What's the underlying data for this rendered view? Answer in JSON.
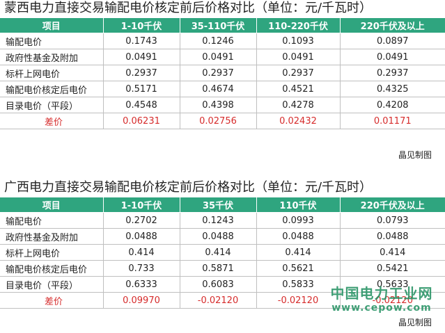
{
  "tables": [
    {
      "title": "蒙西电力直接交易输配电价核定前后价格对比（单位：元/千瓦时）",
      "headers": [
        "项目",
        "1-10千伏",
        "35-110千伏",
        "110-220千伏",
        "220千伏及以上"
      ],
      "rows": [
        [
          "输配电价",
          "0.1743",
          "0.1246",
          "0.1093",
          "0.0897"
        ],
        [
          "政府性基金及附加",
          "0.0491",
          "0.0491",
          "0.0491",
          "0.0491"
        ],
        [
          "标杆上网电价",
          "0.2937",
          "0.2937",
          "0.2937",
          "0.2937"
        ],
        [
          "输配电价核定后电价",
          "0.5171",
          "0.4674",
          "0.4521",
          "0.4325"
        ],
        [
          "目录电价（平段）",
          "0.4548",
          "0.4398",
          "0.4278",
          "0.4208"
        ],
        [
          "差价",
          "0.06231",
          "0.02756",
          "0.02432",
          "0.01171"
        ]
      ],
      "credit": "晶见制图"
    },
    {
      "title": "广西电力直接交易输配电价核定前后价格对比（单位：元/千瓦时）",
      "headers": [
        "项目",
        "1-10千伏",
        "35千伏",
        "110千伏",
        "220千伏及以上"
      ],
      "rows": [
        [
          "输配电价",
          "0.2702",
          "0.1243",
          "0.0993",
          "0.0793"
        ],
        [
          "政府性基金及附加",
          "0.0488",
          "0.0488",
          "0.0488",
          "0.0488"
        ],
        [
          "标杆上网电价",
          "0.414",
          "0.414",
          "0.414",
          "0.414"
        ],
        [
          "输配电价核定后电价",
          "0.733",
          "0.5871",
          "0.5621",
          "0.5421"
        ],
        [
          "目录电价（平段）",
          "0.6333",
          "0.6083",
          "0.5833",
          "0.5633"
        ],
        [
          "差价",
          "0.09970",
          "-0.02120",
          "-0.02120",
          "-0.02120"
        ]
      ],
      "credit": "晶见制图"
    }
  ],
  "watermark": {
    "name": "中国电力工业网",
    "url": "www.cepow.com"
  },
  "colors": {
    "header_bg": "#2fa57f",
    "diff_text": "#d62b2b",
    "watermark": "#1f8f5f"
  }
}
